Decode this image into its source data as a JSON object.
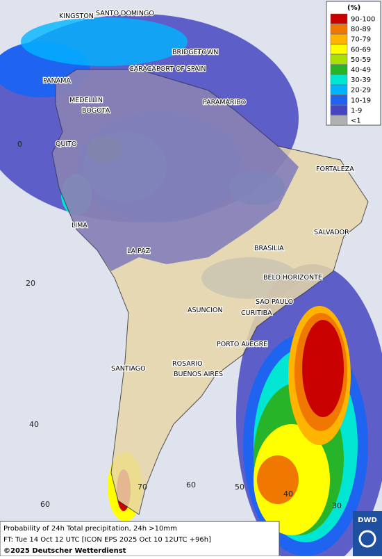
{
  "legend": {
    "title": "(%)",
    "items": [
      {
        "label": "90-100",
        "color": "#c80000"
      },
      {
        "label": "80-89",
        "color": "#f07800"
      },
      {
        "label": "70-79",
        "color": "#ffb400"
      },
      {
        "label": "60-69",
        "color": "#ffff00"
      },
      {
        "label": "50-59",
        "color": "#a8e000"
      },
      {
        "label": "40-49",
        "color": "#28b428"
      },
      {
        "label": "30-39",
        "color": "#00e6d2"
      },
      {
        "label": "20-29",
        "color": "#00b4ff"
      },
      {
        "label": "10-19",
        "color": "#1e64f0"
      },
      {
        "label": "1-9",
        "color": "#4646c0"
      },
      {
        "label": "<1",
        "color": "#b0b0b0"
      }
    ]
  },
  "cities": [
    "KINGSTON",
    "SANTO DOMINGO",
    "BRIDGETOWN",
    "CARACAS",
    "PORT OF SPAIN",
    "PANAMA",
    "MEDELLIN",
    "BOGOTA",
    "PARAMARIBO",
    "QUITO",
    "FORTALEZA",
    "LIMA",
    "SALVADOR",
    "BRASILIA",
    "LA PAZ",
    "BELO HORIZONTE",
    "SAO PAULO",
    "ASUNCION",
    "CURITIBA",
    "PORTO ALEGRE",
    "ROSARIO",
    "BUENOS AIRES",
    "SANTIAGO"
  ],
  "latitude_labels": [
    "0",
    "20",
    "40",
    "60"
  ],
  "longitude_labels": [
    "70",
    "60",
    "50",
    "40",
    "30"
  ],
  "footer": {
    "description": "Probability of 24h Total precipitation, 24h >10mm",
    "forecast_time": "FT: Tue 14 Oct 12 UTC [ICON EPS 2025 Oct 10 12UTC +96h]",
    "copyright": "©2025 Deutscher Wetterdienst"
  },
  "logo": "DWD"
}
